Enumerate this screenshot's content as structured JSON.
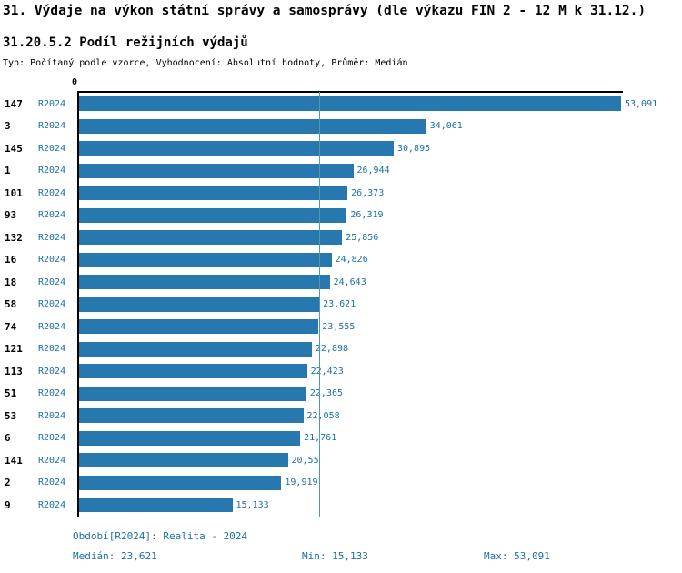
{
  "title": "31. Výdaje na výkon státní správy a samosprávy (dle výkazu FIN 2 - 12 M k 31.12.)",
  "subtitle": "31.20.5.2 Podíl režijních výdajů",
  "meta": "Typ: Počítaný podle vzorce, Vyhodnocení: Absolutní hodnoty, Průměr: Medián",
  "chart_data": {
    "type": "bar",
    "orientation": "horizontal",
    "zero_label": "0",
    "series_label": "R2024",
    "categories": [
      "147",
      "3",
      "145",
      "1",
      "101",
      "93",
      "132",
      "16",
      "18",
      "58",
      "74",
      "121",
      "113",
      "51",
      "53",
      "6",
      "141",
      "2",
      "9"
    ],
    "values": [
      53.091,
      34.061,
      30.895,
      26.944,
      26.373,
      26.319,
      25.856,
      24.826,
      24.643,
      23.621,
      23.555,
      22.898,
      22.423,
      22.365,
      22.058,
      21.761,
      20.55,
      19.919,
      15.133
    ],
    "value_labels": [
      "53,091",
      "34,061",
      "30,895",
      "26,944",
      "26,373",
      "26,319",
      "25,856",
      "24,826",
      "24,643",
      "23,621",
      "23,555",
      "22,898",
      "22,423",
      "22,365",
      "22,058",
      "21,761",
      "20,55",
      "19,919",
      "15,133"
    ],
    "median": 23.621,
    "min": 15.133,
    "max": 53.091,
    "xlim": [
      0,
      53.091
    ],
    "grid": false,
    "legend_position": "none"
  },
  "footer": {
    "period": "Období[R2024]: Realita - 2024",
    "median": "Medián: 23,621",
    "min": "Min: 15,133",
    "max": "Max: 53,091"
  },
  "colors": {
    "bar": "#2878b0",
    "accent_text": "#1d6fa8",
    "axis": "#000000",
    "median_line": "#4e9ba9"
  }
}
